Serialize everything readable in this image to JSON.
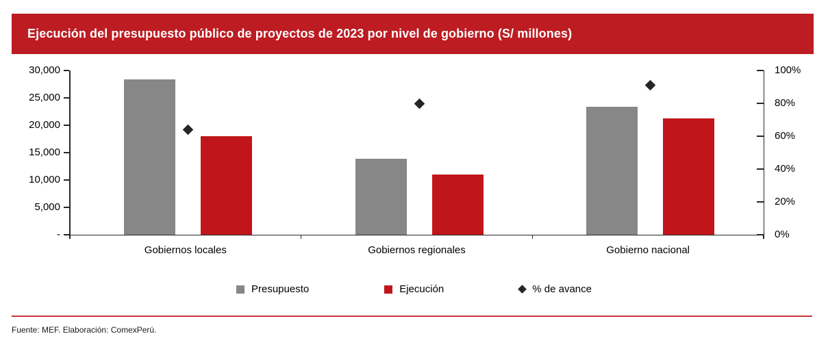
{
  "title": "Ejecución del presupuesto público de proyectos de 2023 por nivel de gobierno (S/ millones)",
  "legend": {
    "items": [
      {
        "label": "Presupuesto",
        "marker": "square",
        "color": "#878787"
      },
      {
        "label": "Ejecución",
        "marker": "square",
        "color": "#c0161b"
      },
      {
        "label": "% de avance",
        "marker": "diamond",
        "color": "#262626"
      }
    ]
  },
  "footer": {
    "source_text": "Fuente: MEF. Elaboración: ComexPerú."
  },
  "colors": {
    "banner_red": "#bc1c22",
    "bar_red": "#c0161b",
    "bar_gray": "#878787",
    "diamond_black": "#262626",
    "axis_line": "#262626",
    "footer_rule_red": "#cb333a",
    "title_text": "#ffffff"
  },
  "chart_data": {
    "type": "bar",
    "subtype": "grouped bars with diamond scatter markers on secondary axis",
    "title": "Ejecución del presupuesto público de proyectos de 2023 por nivel de gobierno (S/ millones)",
    "categories": [
      "Gobiernos locales",
      "Gobiernos regionales",
      "Gobierno nacional"
    ],
    "series": [
      {
        "name": "Presupuesto",
        "type": "bar",
        "axis": "left",
        "color": "#878787",
        "values": [
          28400,
          13900,
          23400
        ]
      },
      {
        "name": "Ejecución",
        "type": "bar",
        "axis": "left",
        "color": "#c0161b",
        "values": [
          18000,
          11000,
          21200
        ]
      },
      {
        "name": "% de avance",
        "type": "scatter",
        "marker": "diamond",
        "axis": "right",
        "color": "#262626",
        "values": [
          64,
          80,
          91
        ]
      }
    ],
    "left_axis": {
      "min": 0,
      "max": 30000,
      "step": 5000,
      "tick_labels": [
        "-",
        "5,000",
        "10,000",
        "15,000",
        "20,000",
        "25,000",
        "30,000"
      ]
    },
    "right_axis": {
      "min": 0,
      "max": 100,
      "step": 20,
      "unit": "%",
      "tick_labels": [
        "0%",
        "20%",
        "40%",
        "60%",
        "80%",
        "100%"
      ]
    },
    "grid": false,
    "legend_position": "bottom"
  }
}
